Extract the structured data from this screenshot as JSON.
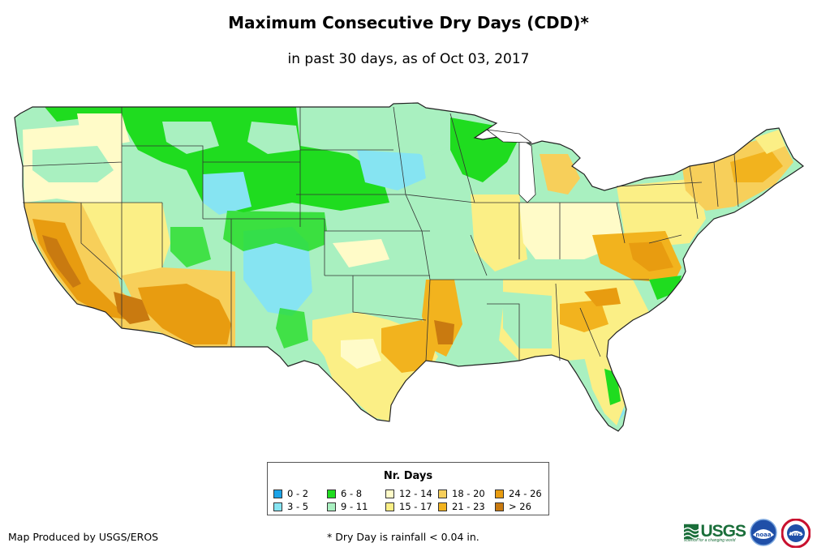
{
  "header": {
    "title": "Maximum Consecutive Dry Days (CDD)*",
    "subtitle": "in past 30 days, as of Oct 03, 2017"
  },
  "map": {
    "region": "Contiguous United States",
    "colors": {
      "ocean": "#ffffff",
      "borders": "#333333"
    }
  },
  "legend": {
    "title": "Nr. Days",
    "items": [
      {
        "label": "0 - 2",
        "color": "#1aa3e8"
      },
      {
        "label": "3 - 5",
        "color": "#86e4f2"
      },
      {
        "label": "6 - 8",
        "color": "#1fdc1f"
      },
      {
        "label": "9 - 11",
        "color": "#a9f0c0"
      },
      {
        "label": "12 - 14",
        "color": "#fffbc8"
      },
      {
        "label": "15 - 17",
        "color": "#fbef86"
      },
      {
        "label": "18 - 20",
        "color": "#f7cf5a"
      },
      {
        "label": "21 - 23",
        "color": "#f2b31e"
      },
      {
        "label": "24 - 26",
        "color": "#e89c10"
      },
      {
        "label": "> 26",
        "color": "#c97a10"
      }
    ]
  },
  "footer": {
    "credit": "Map Produced by USGS/EROS",
    "footnote": "* Dry Day is rainfall < 0.04 in.",
    "logos": {
      "usgs": "USGS",
      "usgs_tagline": "science for a changing world",
      "noaa": "noaa",
      "nws": "NWS"
    }
  }
}
